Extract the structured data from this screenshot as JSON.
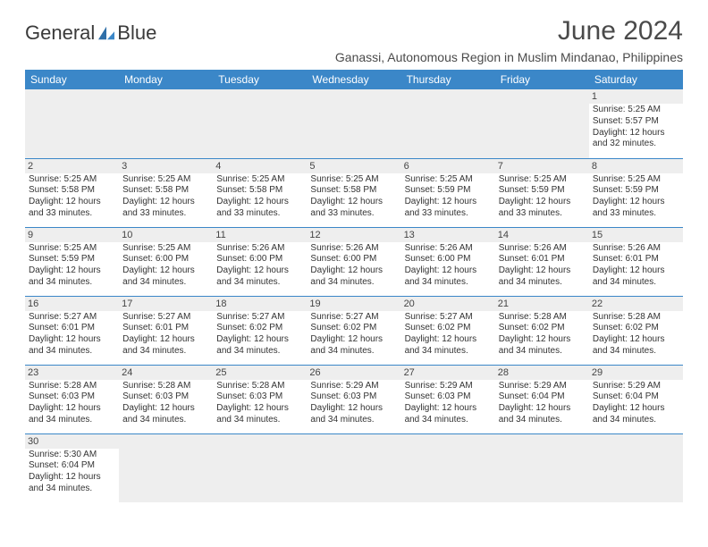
{
  "brand": {
    "part1": "General",
    "part2": "Blue"
  },
  "colors": {
    "header_bg": "#3b87c8",
    "header_text": "#ffffff",
    "daynum_bg": "#eeeeee",
    "border": "#3b87c8",
    "text": "#333333",
    "logo_sail": "#3b87c8"
  },
  "title": "June 2024",
  "location": "Ganassi, Autonomous Region in Muslim Mindanao, Philippines",
  "weekdays": [
    "Sunday",
    "Monday",
    "Tuesday",
    "Wednesday",
    "Thursday",
    "Friday",
    "Saturday"
  ],
  "days": {
    "1": {
      "sunrise": "Sunrise: 5:25 AM",
      "sunset": "Sunset: 5:57 PM",
      "day1": "Daylight: 12 hours",
      "day2": "and 32 minutes."
    },
    "2": {
      "sunrise": "Sunrise: 5:25 AM",
      "sunset": "Sunset: 5:58 PM",
      "day1": "Daylight: 12 hours",
      "day2": "and 33 minutes."
    },
    "3": {
      "sunrise": "Sunrise: 5:25 AM",
      "sunset": "Sunset: 5:58 PM",
      "day1": "Daylight: 12 hours",
      "day2": "and 33 minutes."
    },
    "4": {
      "sunrise": "Sunrise: 5:25 AM",
      "sunset": "Sunset: 5:58 PM",
      "day1": "Daylight: 12 hours",
      "day2": "and 33 minutes."
    },
    "5": {
      "sunrise": "Sunrise: 5:25 AM",
      "sunset": "Sunset: 5:58 PM",
      "day1": "Daylight: 12 hours",
      "day2": "and 33 minutes."
    },
    "6": {
      "sunrise": "Sunrise: 5:25 AM",
      "sunset": "Sunset: 5:59 PM",
      "day1": "Daylight: 12 hours",
      "day2": "and 33 minutes."
    },
    "7": {
      "sunrise": "Sunrise: 5:25 AM",
      "sunset": "Sunset: 5:59 PM",
      "day1": "Daylight: 12 hours",
      "day2": "and 33 minutes."
    },
    "8": {
      "sunrise": "Sunrise: 5:25 AM",
      "sunset": "Sunset: 5:59 PM",
      "day1": "Daylight: 12 hours",
      "day2": "and 33 minutes."
    },
    "9": {
      "sunrise": "Sunrise: 5:25 AM",
      "sunset": "Sunset: 5:59 PM",
      "day1": "Daylight: 12 hours",
      "day2": "and 34 minutes."
    },
    "10": {
      "sunrise": "Sunrise: 5:25 AM",
      "sunset": "Sunset: 6:00 PM",
      "day1": "Daylight: 12 hours",
      "day2": "and 34 minutes."
    },
    "11": {
      "sunrise": "Sunrise: 5:26 AM",
      "sunset": "Sunset: 6:00 PM",
      "day1": "Daylight: 12 hours",
      "day2": "and 34 minutes."
    },
    "12": {
      "sunrise": "Sunrise: 5:26 AM",
      "sunset": "Sunset: 6:00 PM",
      "day1": "Daylight: 12 hours",
      "day2": "and 34 minutes."
    },
    "13": {
      "sunrise": "Sunrise: 5:26 AM",
      "sunset": "Sunset: 6:00 PM",
      "day1": "Daylight: 12 hours",
      "day2": "and 34 minutes."
    },
    "14": {
      "sunrise": "Sunrise: 5:26 AM",
      "sunset": "Sunset: 6:01 PM",
      "day1": "Daylight: 12 hours",
      "day2": "and 34 minutes."
    },
    "15": {
      "sunrise": "Sunrise: 5:26 AM",
      "sunset": "Sunset: 6:01 PM",
      "day1": "Daylight: 12 hours",
      "day2": "and 34 minutes."
    },
    "16": {
      "sunrise": "Sunrise: 5:27 AM",
      "sunset": "Sunset: 6:01 PM",
      "day1": "Daylight: 12 hours",
      "day2": "and 34 minutes."
    },
    "17": {
      "sunrise": "Sunrise: 5:27 AM",
      "sunset": "Sunset: 6:01 PM",
      "day1": "Daylight: 12 hours",
      "day2": "and 34 minutes."
    },
    "18": {
      "sunrise": "Sunrise: 5:27 AM",
      "sunset": "Sunset: 6:02 PM",
      "day1": "Daylight: 12 hours",
      "day2": "and 34 minutes."
    },
    "19": {
      "sunrise": "Sunrise: 5:27 AM",
      "sunset": "Sunset: 6:02 PM",
      "day1": "Daylight: 12 hours",
      "day2": "and 34 minutes."
    },
    "20": {
      "sunrise": "Sunrise: 5:27 AM",
      "sunset": "Sunset: 6:02 PM",
      "day1": "Daylight: 12 hours",
      "day2": "and 34 minutes."
    },
    "21": {
      "sunrise": "Sunrise: 5:28 AM",
      "sunset": "Sunset: 6:02 PM",
      "day1": "Daylight: 12 hours",
      "day2": "and 34 minutes."
    },
    "22": {
      "sunrise": "Sunrise: 5:28 AM",
      "sunset": "Sunset: 6:02 PM",
      "day1": "Daylight: 12 hours",
      "day2": "and 34 minutes."
    },
    "23": {
      "sunrise": "Sunrise: 5:28 AM",
      "sunset": "Sunset: 6:03 PM",
      "day1": "Daylight: 12 hours",
      "day2": "and 34 minutes."
    },
    "24": {
      "sunrise": "Sunrise: 5:28 AM",
      "sunset": "Sunset: 6:03 PM",
      "day1": "Daylight: 12 hours",
      "day2": "and 34 minutes."
    },
    "25": {
      "sunrise": "Sunrise: 5:28 AM",
      "sunset": "Sunset: 6:03 PM",
      "day1": "Daylight: 12 hours",
      "day2": "and 34 minutes."
    },
    "26": {
      "sunrise": "Sunrise: 5:29 AM",
      "sunset": "Sunset: 6:03 PM",
      "day1": "Daylight: 12 hours",
      "day2": "and 34 minutes."
    },
    "27": {
      "sunrise": "Sunrise: 5:29 AM",
      "sunset": "Sunset: 6:03 PM",
      "day1": "Daylight: 12 hours",
      "day2": "and 34 minutes."
    },
    "28": {
      "sunrise": "Sunrise: 5:29 AM",
      "sunset": "Sunset: 6:04 PM",
      "day1": "Daylight: 12 hours",
      "day2": "and 34 minutes."
    },
    "29": {
      "sunrise": "Sunrise: 5:29 AM",
      "sunset": "Sunset: 6:04 PM",
      "day1": "Daylight: 12 hours",
      "day2": "and 34 minutes."
    },
    "30": {
      "sunrise": "Sunrise: 5:30 AM",
      "sunset": "Sunset: 6:04 PM",
      "day1": "Daylight: 12 hours",
      "day2": "and 34 minutes."
    }
  },
  "layout": [
    [
      null,
      null,
      null,
      null,
      null,
      null,
      "1"
    ],
    [
      "2",
      "3",
      "4",
      "5",
      "6",
      "7",
      "8"
    ],
    [
      "9",
      "10",
      "11",
      "12",
      "13",
      "14",
      "15"
    ],
    [
      "16",
      "17",
      "18",
      "19",
      "20",
      "21",
      "22"
    ],
    [
      "23",
      "24",
      "25",
      "26",
      "27",
      "28",
      "29"
    ],
    [
      "30",
      null,
      null,
      null,
      null,
      null,
      null
    ]
  ]
}
